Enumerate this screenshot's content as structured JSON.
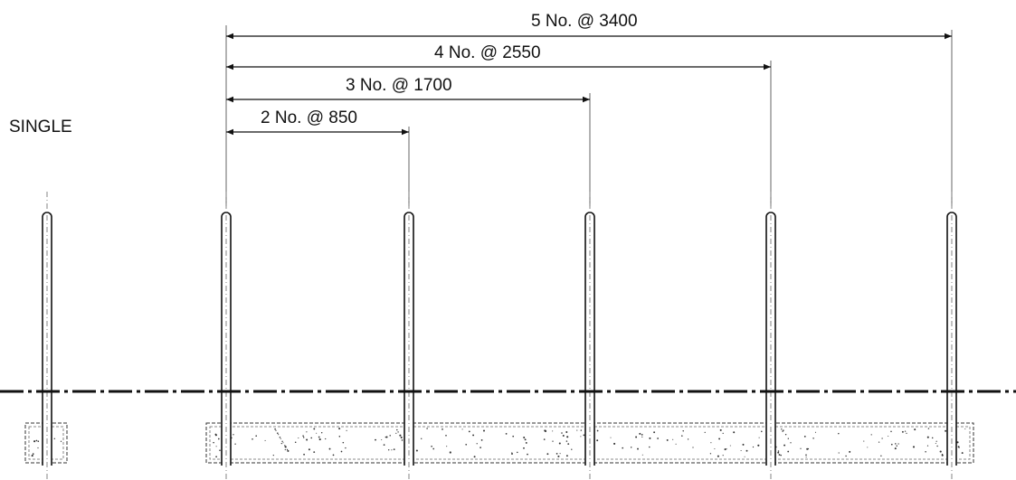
{
  "single_label": "SINGLE",
  "dimensions": [
    {
      "id": "5",
      "label": "5 No. @ 3400"
    },
    {
      "id": "4",
      "label": "4 No. @ 2550"
    },
    {
      "id": "3",
      "label": "3 No. @ 1700"
    },
    {
      "id": "2",
      "label": "2 No. @ 850"
    }
  ],
  "colors": {
    "line": "#111111",
    "background": "#ffffff"
  }
}
